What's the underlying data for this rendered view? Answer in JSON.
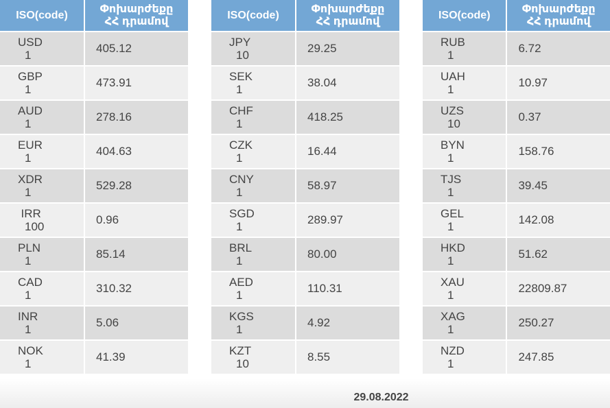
{
  "headers": {
    "code": "ISO(code)",
    "rate_line1": "Փոխարժեքը",
    "rate_line2": "ՀՀ դրամով"
  },
  "tables": [
    {
      "rows": [
        {
          "code": "USD",
          "qty": "1",
          "rate": "405.12"
        },
        {
          "code": "GBP",
          "qty": "1",
          "rate": "473.91"
        },
        {
          "code": "AUD",
          "qty": "1",
          "rate": "278.16"
        },
        {
          "code": "EUR",
          "qty": "1",
          "rate": "404.63"
        },
        {
          "code": "XDR",
          "qty": "1",
          "rate": "529.28"
        },
        {
          "code": "IRR",
          "qty": "100",
          "rate": "0.96"
        },
        {
          "code": "PLN",
          "qty": "1",
          "rate": "85.14"
        },
        {
          "code": "CAD",
          "qty": "1",
          "rate": "310.32"
        },
        {
          "code": "INR",
          "qty": "1",
          "rate": "5.06"
        },
        {
          "code": "NOK",
          "qty": "1",
          "rate": "41.39"
        }
      ]
    },
    {
      "rows": [
        {
          "code": "JPY",
          "qty": "10",
          "rate": "29.25"
        },
        {
          "code": "SEK",
          "qty": "1",
          "rate": "38.04"
        },
        {
          "code": "CHF",
          "qty": "1",
          "rate": "418.25"
        },
        {
          "code": "CZK",
          "qty": "1",
          "rate": "16.44"
        },
        {
          "code": "CNY",
          "qty": "1",
          "rate": "58.97"
        },
        {
          "code": "SGD",
          "qty": "1",
          "rate": "289.97"
        },
        {
          "code": "BRL",
          "qty": "1",
          "rate": "80.00"
        },
        {
          "code": "AED",
          "qty": "1",
          "rate": "110.31"
        },
        {
          "code": "KGS",
          "qty": "1",
          "rate": "4.92"
        },
        {
          "code": "KZT",
          "qty": "10",
          "rate": "8.55"
        }
      ]
    },
    {
      "rows": [
        {
          "code": "RUB",
          "qty": "1",
          "rate": "6.72"
        },
        {
          "code": "UAH",
          "qty": "1",
          "rate": "10.97"
        },
        {
          "code": "UZS",
          "qty": "10",
          "rate": "0.37"
        },
        {
          "code": "BYN",
          "qty": "1",
          "rate": "158.76"
        },
        {
          "code": "TJS",
          "qty": "1",
          "rate": "39.45"
        },
        {
          "code": "GEL",
          "qty": "1",
          "rate": "142.08"
        },
        {
          "code": "HKD",
          "qty": "1",
          "rate": "51.62"
        },
        {
          "code": "XAU",
          "qty": "1",
          "rate": "22809.87"
        },
        {
          "code": "XAG",
          "qty": "1",
          "rate": "250.27"
        },
        {
          "code": "NZD",
          "qty": "1",
          "rate": "247.85"
        }
      ]
    }
  ],
  "date": "29.08.2022",
  "colors": {
    "header_bg": "#73a7d5",
    "row_dark": "#dcdcdc",
    "row_light": "#efefef",
    "text": "#444444"
  }
}
